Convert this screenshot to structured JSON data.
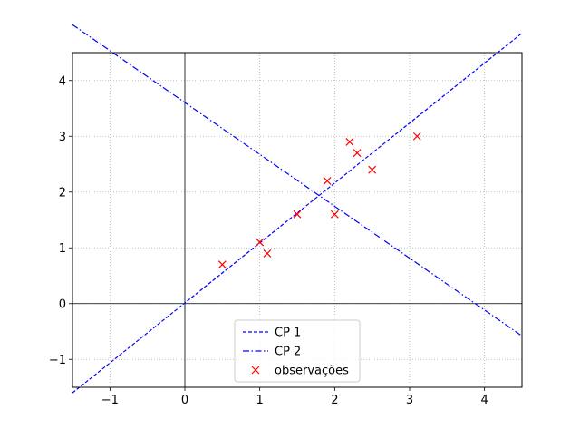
{
  "chart_data": {
    "type": "scatter",
    "title": "",
    "xlabel": "",
    "ylabel": "",
    "xlim": [
      -1.5,
      4.5
    ],
    "ylim": [
      -1.5,
      4.5
    ],
    "grid": true,
    "legend_position": "bottom-center",
    "xticks": [
      -1,
      0,
      1,
      2,
      3,
      4
    ],
    "yticks": [
      -1,
      0,
      1,
      2,
      3,
      4
    ],
    "xtick_labels": [
      "−1",
      "0",
      "1",
      "2",
      "3",
      "4"
    ],
    "ytick_labels": [
      "−1",
      "0",
      "1",
      "2",
      "3",
      "4"
    ],
    "series": [
      {
        "name": "CP 1",
        "kind": "line",
        "style": "dashed",
        "color": "#0000ff",
        "x": [
          -1.5,
          4.5
        ],
        "y": [
          -1.6,
          4.85
        ]
      },
      {
        "name": "CP 2",
        "kind": "line",
        "style": "dashdot",
        "color": "#0000ff",
        "x": [
          -1.5,
          4.5
        ],
        "y": [
          5.0,
          -0.58
        ]
      },
      {
        "name": "observações",
        "kind": "scatter",
        "marker": "x",
        "color": "#ff0000",
        "x": [
          0.5,
          1.0,
          1.1,
          1.5,
          1.9,
          2.0,
          2.2,
          2.3,
          2.5,
          3.1
        ],
        "y": [
          0.7,
          1.1,
          0.9,
          1.6,
          2.2,
          1.6,
          2.9,
          2.7,
          2.4,
          3.0
        ]
      }
    ]
  }
}
